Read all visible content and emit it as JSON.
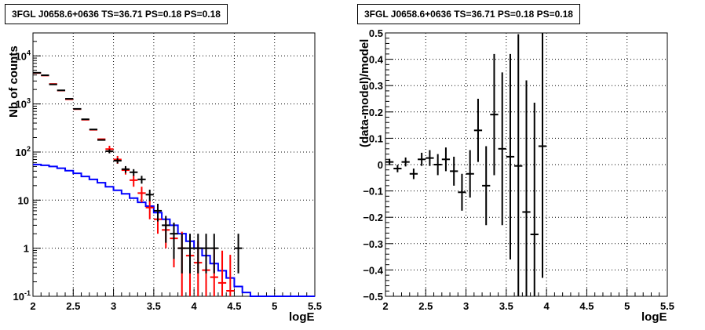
{
  "chart_data": [
    {
      "type": "line",
      "title": "3FGL J0658.6+0636 TS=36.71 PS=0.18 PS=0.18",
      "xlabel": "logE",
      "ylabel": "Nb of counts",
      "xlim": [
        2,
        5.5
      ],
      "ylim": [
        0.1,
        30000
      ],
      "yscale": "log",
      "grid": true,
      "x_ticks": [
        "2",
        "2.5",
        "3",
        "3.5",
        "4",
        "4.5",
        "5",
        "5.5"
      ],
      "y_ticks": [
        {
          "value": 0.1,
          "label": "10",
          "exp": "-1"
        },
        {
          "value": 1,
          "label": "1",
          "exp": ""
        },
        {
          "value": 10,
          "label": "10",
          "exp": ""
        },
        {
          "value": 100,
          "label": "10",
          "exp": "2"
        },
        {
          "value": 1000,
          "label": "10",
          "exp": "3"
        },
        {
          "value": 10000,
          "label": "10",
          "exp": "4"
        }
      ],
      "bin_edges": [
        2.0,
        2.1,
        2.2,
        2.3,
        2.4,
        2.5,
        2.6,
        2.7,
        2.8,
        2.9,
        3.0,
        3.1,
        3.2,
        3.3,
        3.4,
        3.5,
        3.6,
        3.7,
        3.8,
        3.9,
        4.0,
        4.1,
        4.2,
        4.3,
        4.4,
        4.5,
        4.6,
        4.7,
        4.8,
        4.9,
        5.0,
        5.1,
        5.2,
        5.3,
        5.4,
        5.5
      ],
      "series": [
        {
          "color": "#0000ff",
          "kind": "histogram",
          "values": [
            55,
            53,
            50,
            46,
            41,
            36,
            31,
            27,
            23,
            19,
            16,
            13.5,
            11,
            9,
            7.5,
            5.5,
            4,
            3,
            2,
            1.4,
            1.0,
            0.7,
            0.48,
            0.34,
            0.24,
            0.16,
            0.12,
            0.1,
            0.1,
            0.1,
            0.1,
            0.1,
            0.1,
            0.1,
            0.1
          ]
        },
        {
          "color": "#ff0000",
          "kind": "points",
          "x": [
            2.05,
            2.15,
            2.25,
            2.35,
            2.45,
            2.55,
            2.65,
            2.75,
            2.85,
            2.95,
            3.05,
            3.15,
            3.25,
            3.35,
            3.45,
            3.55,
            3.65,
            3.75,
            3.85,
            3.95,
            4.05,
            4.15,
            4.25,
            4.35,
            4.45
          ],
          "y": [
            4400,
            3900,
            2600,
            1900,
            1250,
            780,
            470,
            290,
            185,
            115,
            70,
            42,
            26,
            14,
            7,
            4,
            2.4,
            1.6,
            1.0,
            0.7,
            0.5,
            0.35,
            0.25,
            0.19,
            0.13
          ],
          "err_lo": [
            0,
            0,
            0,
            0,
            0,
            0,
            0,
            0,
            0,
            20,
            13,
            8,
            7,
            5,
            3,
            2,
            1.4,
            1.2,
            0.9,
            0.6,
            0.45,
            0.32,
            0.23,
            0.17,
            0.12
          ],
          "err_hi": [
            0,
            0,
            0,
            0,
            0,
            0,
            0,
            0,
            0,
            20,
            13,
            8,
            7,
            5,
            3,
            2,
            1.5,
            1.4,
            1.2,
            1.0,
            0.9,
            0.8,
            0.7,
            0.7,
            0.6
          ]
        },
        {
          "color": "#000000",
          "kind": "points",
          "x": [
            2.05,
            2.15,
            2.25,
            2.35,
            2.45,
            2.55,
            2.65,
            2.75,
            2.85,
            2.95,
            3.05,
            3.15,
            3.25,
            3.35,
            3.45,
            3.55,
            3.65,
            3.75,
            3.85,
            3.95,
            4.05,
            4.15,
            4.25,
            4.55
          ],
          "y": [
            4450,
            3950,
            2550,
            1920,
            1280,
            790,
            480,
            295,
            178,
            104,
            66,
            44,
            38,
            27,
            13,
            6,
            3,
            2,
            1,
            1,
            1,
            1,
            1,
            1
          ],
          "err_lo": [
            0,
            0,
            0,
            0,
            0,
            0,
            0,
            0,
            0,
            10,
            8,
            7,
            6,
            5,
            3.5,
            2.4,
            1.7,
            1.4,
            0.7,
            0.7,
            0.7,
            0.7,
            0.7,
            0.7
          ],
          "err_hi": [
            0,
            0,
            0,
            0,
            0,
            0,
            0,
            0,
            0,
            10,
            8,
            7,
            6,
            5,
            3.5,
            2.4,
            1.7,
            1.4,
            1.0,
            1.0,
            1.0,
            1.0,
            1.0,
            1.0
          ]
        }
      ]
    },
    {
      "type": "scatter",
      "title": "3FGL J0658.6+0636 TS=36.71 PS=0.18 PS=0.18",
      "xlabel": "logE",
      "ylabel": "(data-model)/model",
      "xlim": [
        2,
        5.5
      ],
      "ylim": [
        -0.5,
        0.5
      ],
      "grid": true,
      "x_ticks": [
        "2",
        "2.5",
        "3",
        "3.5",
        "4",
        "4.5",
        "5",
        "5.5"
      ],
      "y_ticks": [
        "−0.5",
        "−0.4",
        "−0.3",
        "−0.2",
        "−0.1",
        "0",
        "0.1",
        "0.2",
        "0.3",
        "0.4",
        "0.5"
      ],
      "series": [
        {
          "color": "#000000",
          "x": [
            2.05,
            2.15,
            2.25,
            2.35,
            2.45,
            2.55,
            2.65,
            2.75,
            2.85,
            2.95,
            3.05,
            3.15,
            3.25,
            3.35,
            3.45,
            3.55,
            3.65,
            3.75,
            3.85,
            3.95
          ],
          "y": [
            0.01,
            -0.015,
            0.01,
            -0.035,
            0.02,
            0.025,
            0.0,
            0.02,
            -0.025,
            -0.105,
            -0.035,
            0.13,
            -0.08,
            0.19,
            0.06,
            0.03,
            -0.005,
            -0.18,
            -0.265,
            0.07
          ],
          "err": [
            0.012,
            0.014,
            0.017,
            0.02,
            0.025,
            0.03,
            0.04,
            0.045,
            0.055,
            0.07,
            0.09,
            0.12,
            0.15,
            0.23,
            0.29,
            0.39,
            0.5,
            0.5,
            0.5,
            0.5
          ]
        }
      ]
    }
  ]
}
